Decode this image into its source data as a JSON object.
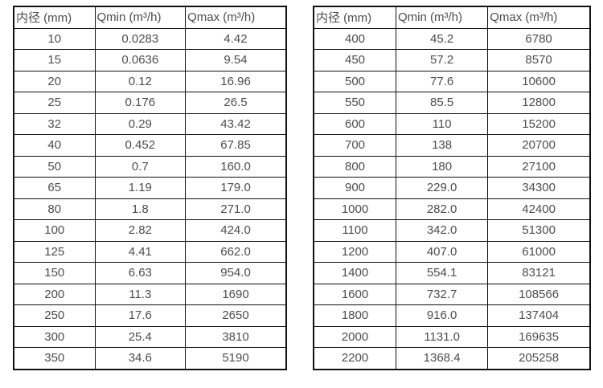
{
  "colors": {
    "border": "#111111",
    "text": "#4d4d4d",
    "background": "#ffffff"
  },
  "tables": [
    {
      "id": "small-diameters",
      "headers": [
        "内径 (mm)",
        "Qmin (m³/h)",
        "Qmax (m³/h)"
      ],
      "rows": [
        [
          "10",
          "0.0283",
          "4.42"
        ],
        [
          "15",
          "0.0636",
          "9.54"
        ],
        [
          "20",
          "0.12",
          "16.96"
        ],
        [
          "25",
          "0.176",
          "26.5"
        ],
        [
          "32",
          "0.29",
          "43.42"
        ],
        [
          "40",
          "0.452",
          "67.85"
        ],
        [
          "50",
          "0.7",
          "160.0"
        ],
        [
          "65",
          "1.19",
          "179.0"
        ],
        [
          "80",
          "1.8",
          "271.0"
        ],
        [
          "100",
          "2.82",
          "424.0"
        ],
        [
          "125",
          "4.41",
          "662.0"
        ],
        [
          "150",
          "6.63",
          "954.0"
        ],
        [
          "200",
          "11.3",
          "1690"
        ],
        [
          "250",
          "17.6",
          "2650"
        ],
        [
          "300",
          "25.4",
          "3810"
        ],
        [
          "350",
          "34.6",
          "5190"
        ]
      ]
    },
    {
      "id": "large-diameters",
      "headers": [
        "内径 (mm)",
        "Qmin (m³/h)",
        "Qmax (m³/h)"
      ],
      "rows": [
        [
          "400",
          "45.2",
          "6780"
        ],
        [
          "450",
          "57.2",
          "8570"
        ],
        [
          "500",
          "77.6",
          "10600"
        ],
        [
          "550",
          "85.5",
          "12800"
        ],
        [
          "600",
          "110",
          "15200"
        ],
        [
          "700",
          "138",
          "20700"
        ],
        [
          "800",
          "180",
          "27100"
        ],
        [
          "900",
          "229.0",
          "34300"
        ],
        [
          "1000",
          "282.0",
          "42400"
        ],
        [
          "1100",
          "342.0",
          "51300"
        ],
        [
          "1200",
          "407.0",
          "61000"
        ],
        [
          "1400",
          "554.1",
          "83121"
        ],
        [
          "1600",
          "732.7",
          "108566"
        ],
        [
          "1800",
          "916.0",
          "137404"
        ],
        [
          "2000",
          "1131.0",
          "169635"
        ],
        [
          "2200",
          "1368.4",
          "205258"
        ]
      ]
    }
  ]
}
